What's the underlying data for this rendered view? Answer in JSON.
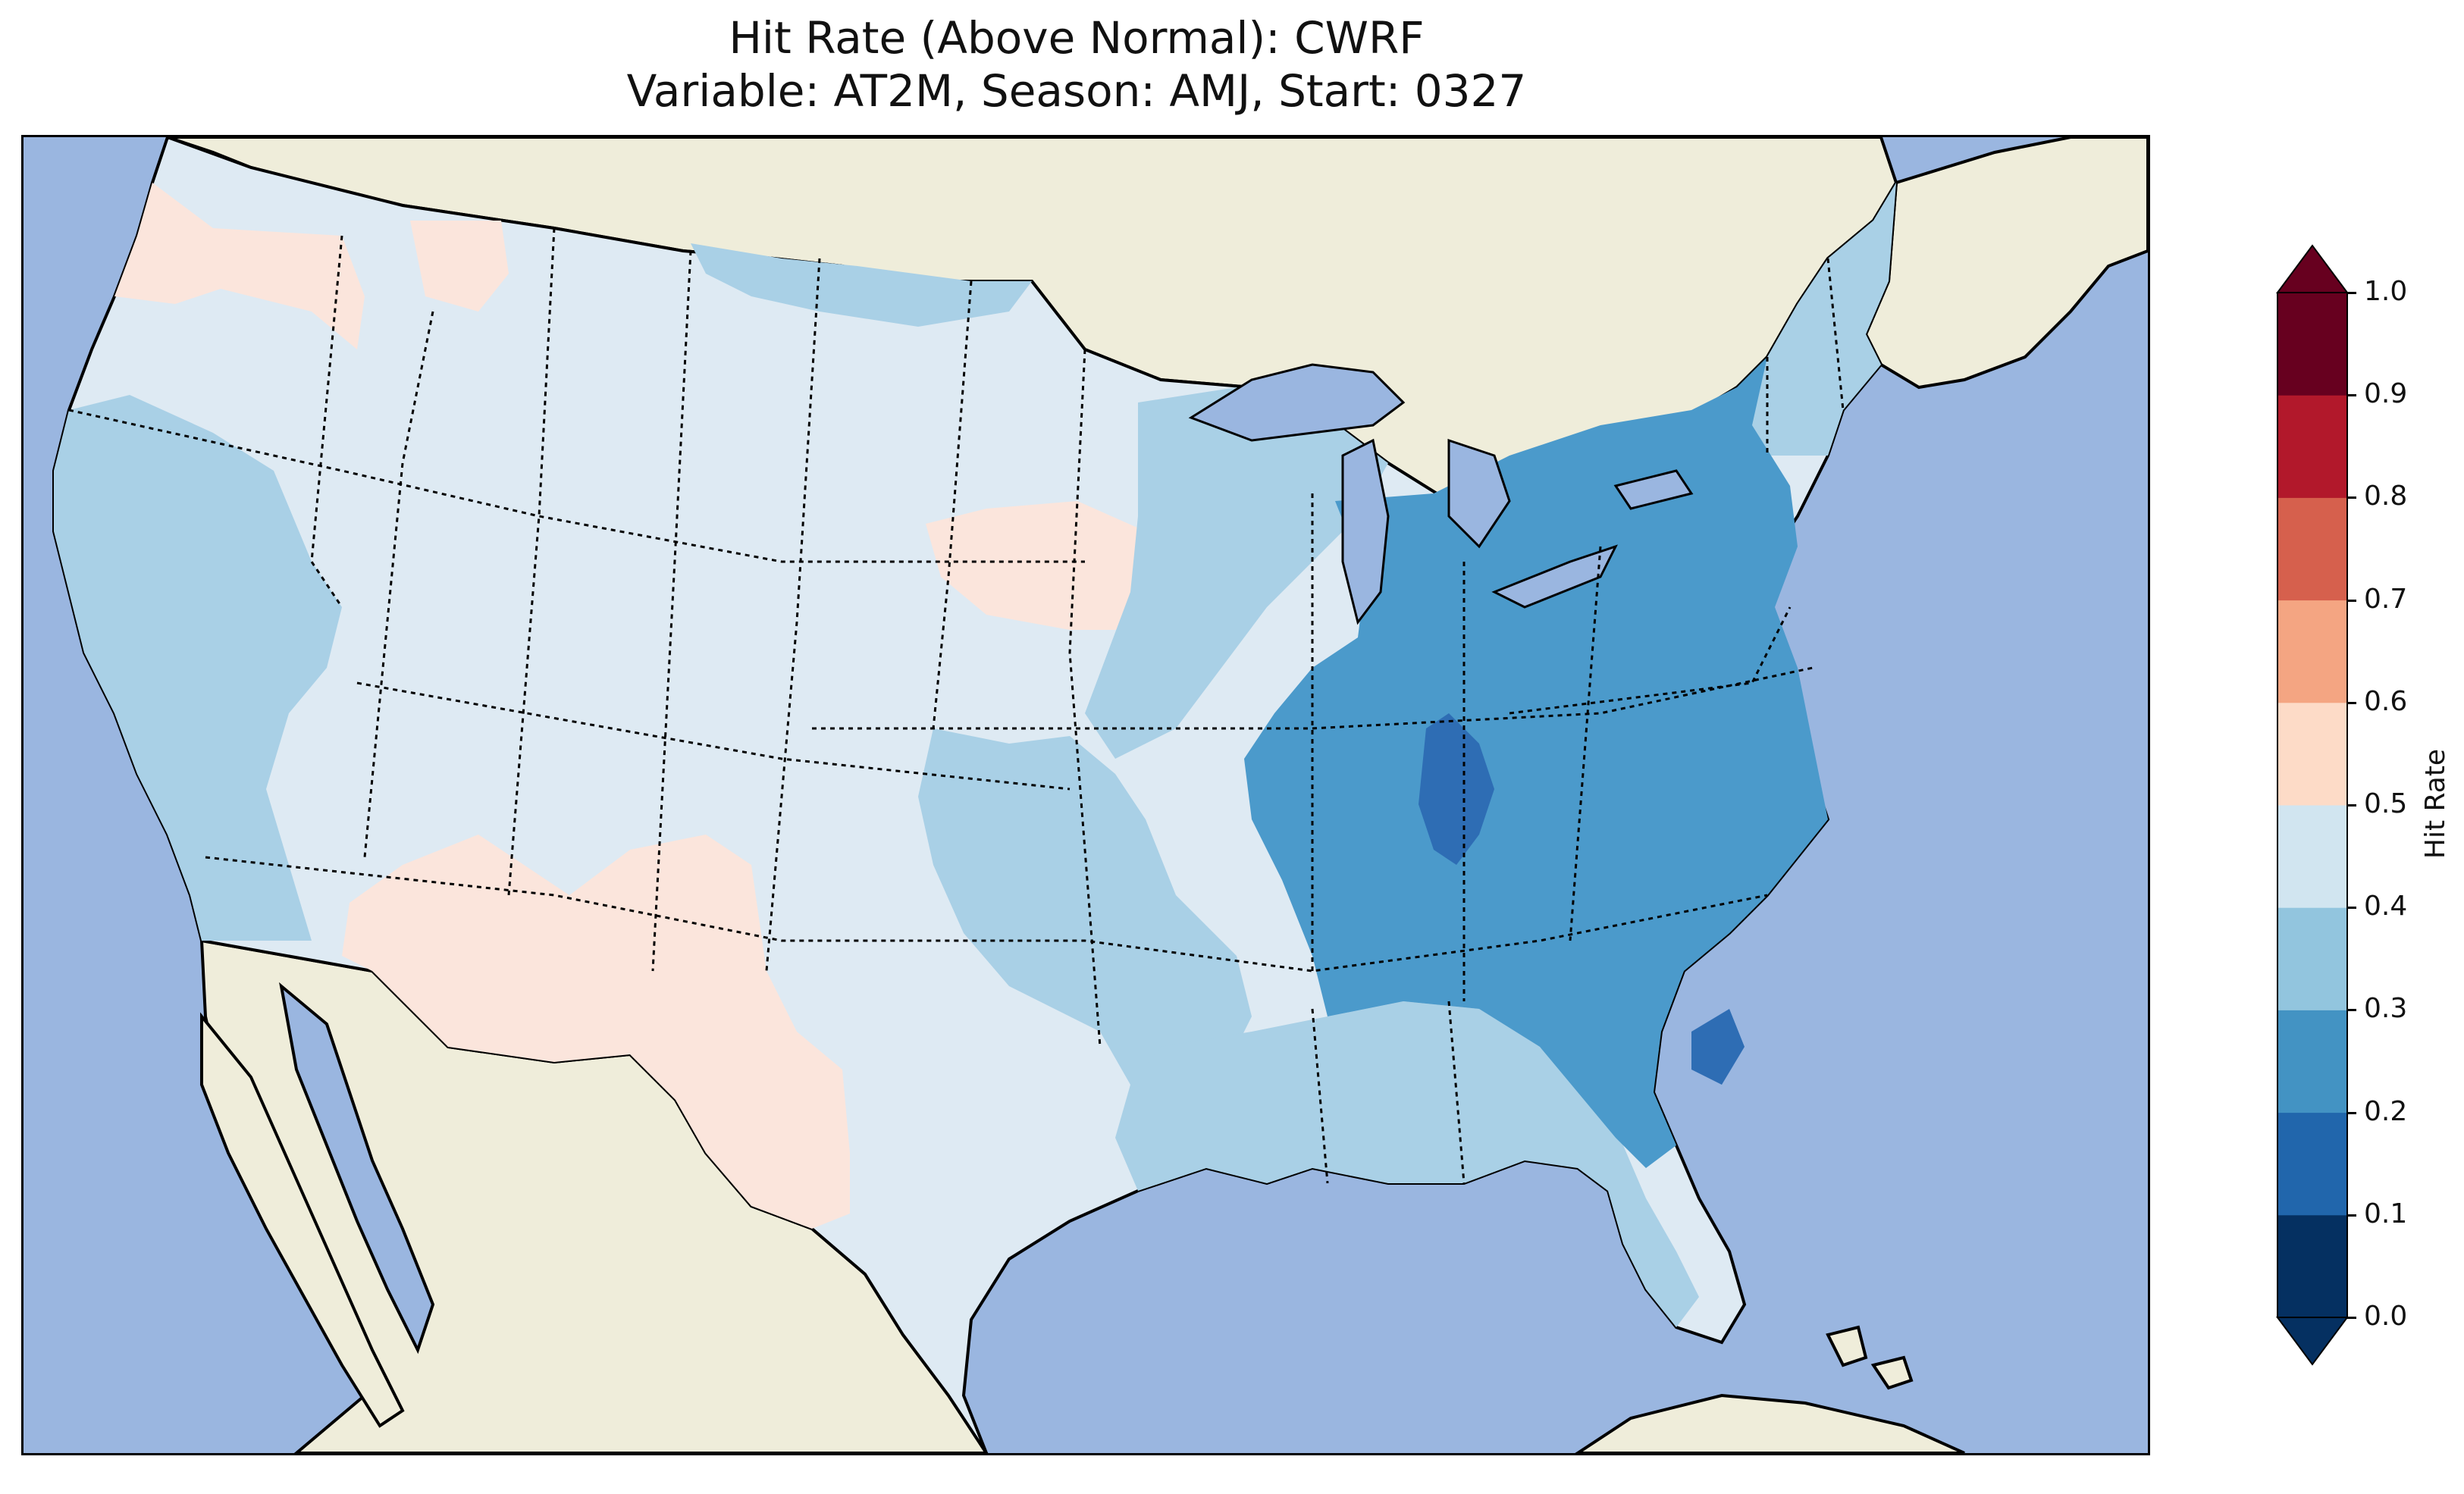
{
  "title_line1": "Hit Rate (Above Normal): CWRF",
  "title_line2": "Variable: AT2M, Season: AMJ, Start: 0327",
  "colorbar": {
    "label": "Hit Rate",
    "ticks": [
      "0.0",
      "0.1",
      "0.2",
      "0.3",
      "0.4",
      "0.5",
      "0.6",
      "0.7",
      "0.8",
      "0.9",
      "1.0"
    ],
    "colors": [
      "#053061",
      "#2166ac",
      "#4393c3",
      "#92c5de",
      "#d1e5f0",
      "#fddbc7",
      "#f4a582",
      "#d6604d",
      "#b2182b",
      "#67001f"
    ],
    "extend": "both"
  },
  "map": {
    "ocean_color": "#9ab6e0",
    "land_color": "#efedda",
    "dominant_class_color": "#deeaf3",
    "region_values": [
      {
        "region": "Pacific Northwest coast",
        "range": "0.5-0.6"
      },
      {
        "region": "West / Great Plains",
        "range": "0.4-0.5"
      },
      {
        "region": "California / Nevada",
        "range": "0.3-0.4"
      },
      {
        "region": "Arizona / New Mexico / West Texas",
        "range": "0.5-0.6"
      },
      {
        "region": "Southeast / Ohio Valley / Mid-Atlantic",
        "range": "0.2-0.3"
      },
      {
        "region": "Indiana / Kentucky, coastal Carolinas",
        "range": "0.1-0.2"
      },
      {
        "region": "Florida / Gulf Coast",
        "range": "0.3-0.4"
      }
    ]
  }
}
